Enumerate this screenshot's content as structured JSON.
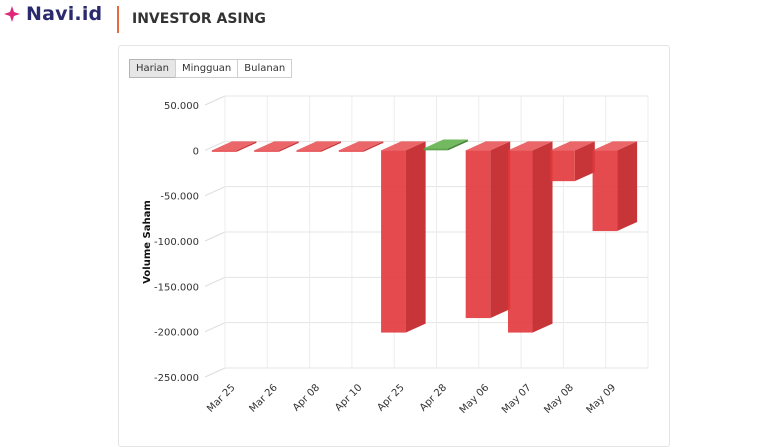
{
  "brand": {
    "name": "Navi.id",
    "logo_color": "#e0287a"
  },
  "header": {
    "title": "INVESTOR ASING",
    "accent": "#e8693c"
  },
  "tabs": [
    {
      "label": "Harian",
      "active": true
    },
    {
      "label": "Mingguan",
      "active": false
    },
    {
      "label": "Bulanan",
      "active": false
    }
  ],
  "chart_data": {
    "type": "bar",
    "title": "",
    "xlabel": "",
    "ylabel": "Volume Saham",
    "categories": [
      "Mar 25",
      "Mar 26",
      "Apr 08",
      "Apr 10",
      "Apr 25",
      "Apr 28",
      "May 06",
      "May 07",
      "May 08",
      "May 09"
    ],
    "values": [
      -1000,
      -800,
      -1500,
      -900,
      -201000,
      2000,
      -185000,
      -201000,
      -34000,
      -89000
    ],
    "yticks": [
      "50.000",
      "0",
      "-50.000",
      "-100.000",
      "-150.000",
      "-200.000",
      "-250.000"
    ],
    "ylim": [
      -250000,
      50000
    ],
    "colors": {
      "negative": "#e2373b",
      "positive": "#4e9a3c"
    },
    "grid": true
  }
}
